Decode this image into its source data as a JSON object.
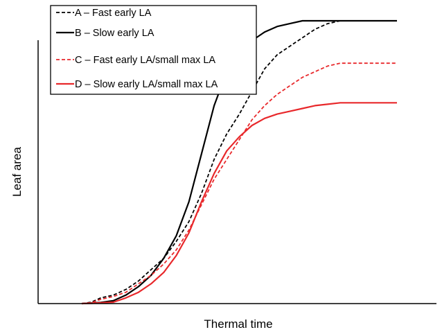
{
  "chart_data": {
    "type": "line",
    "title": "",
    "xlabel": "Thermal time",
    "ylabel": "Leaf area",
    "xlim": [
      0,
      100
    ],
    "ylim": [
      0,
      100
    ],
    "ticks": "none",
    "grid": false,
    "legend_position": "top-left",
    "series": [
      {
        "name": "A – Fast early LA",
        "color": "#000000",
        "line_style": "dashed",
        "x": [
          0,
          3,
          6,
          10,
          14,
          18,
          22,
          26,
          30,
          34,
          38,
          42,
          46,
          50,
          54,
          58,
          62,
          66,
          70,
          74,
          78,
          82,
          86,
          90,
          94,
          98,
          100
        ],
        "y": [
          0,
          0.5,
          2,
          3,
          5,
          8,
          12,
          16,
          22,
          29,
          39,
          51,
          60,
          67,
          75,
          83,
          88,
          91,
          94,
          97,
          99,
          100,
          100,
          100,
          100,
          100,
          100
        ]
      },
      {
        "name": "B – Slow early LA",
        "color": "#000000",
        "line_style": "solid",
        "x": [
          0,
          3,
          6,
          10,
          14,
          18,
          22,
          26,
          30,
          34,
          38,
          42,
          46,
          50,
          54,
          58,
          62,
          66,
          70,
          74,
          78,
          82,
          86,
          90,
          94,
          98,
          100
        ],
        "y": [
          0,
          0.2,
          0.4,
          1,
          3,
          6,
          10,
          16,
          24,
          36,
          53,
          70,
          82,
          89,
          93,
          96,
          98,
          99,
          100,
          100,
          100,
          100,
          100,
          100,
          100,
          100,
          100
        ]
      },
      {
        "name": "C – Fast early LA/small max LA",
        "color": "#e8282b",
        "line_style": "dashed",
        "x": [
          0,
          3,
          6,
          10,
          14,
          18,
          22,
          26,
          30,
          34,
          38,
          42,
          46,
          50,
          54,
          58,
          62,
          66,
          70,
          74,
          78,
          82,
          86,
          90,
          94,
          98,
          100
        ],
        "y": [
          0,
          0.3,
          1.5,
          2.5,
          4,
          7,
          10,
          14,
          19,
          26,
          35,
          44,
          51,
          58,
          65,
          70,
          74,
          77,
          80,
          82,
          84,
          85,
          85,
          85,
          85,
          85,
          85
        ]
      },
      {
        "name": "D – Slow early LA/small max LA",
        "color": "#e8282b",
        "line_style": "solid",
        "x": [
          0,
          3,
          6,
          10,
          14,
          18,
          22,
          26,
          30,
          34,
          38,
          42,
          46,
          50,
          54,
          58,
          62,
          66,
          70,
          74,
          78,
          82,
          86,
          90,
          94,
          98,
          100
        ],
        "y": [
          0,
          0.1,
          0.3,
          0.5,
          2,
          4,
          7,
          11,
          17,
          25,
          36,
          46,
          54,
          59,
          63,
          65.5,
          67,
          68,
          69,
          70,
          70.5,
          71,
          71,
          71,
          71,
          71,
          71
        ]
      }
    ]
  }
}
